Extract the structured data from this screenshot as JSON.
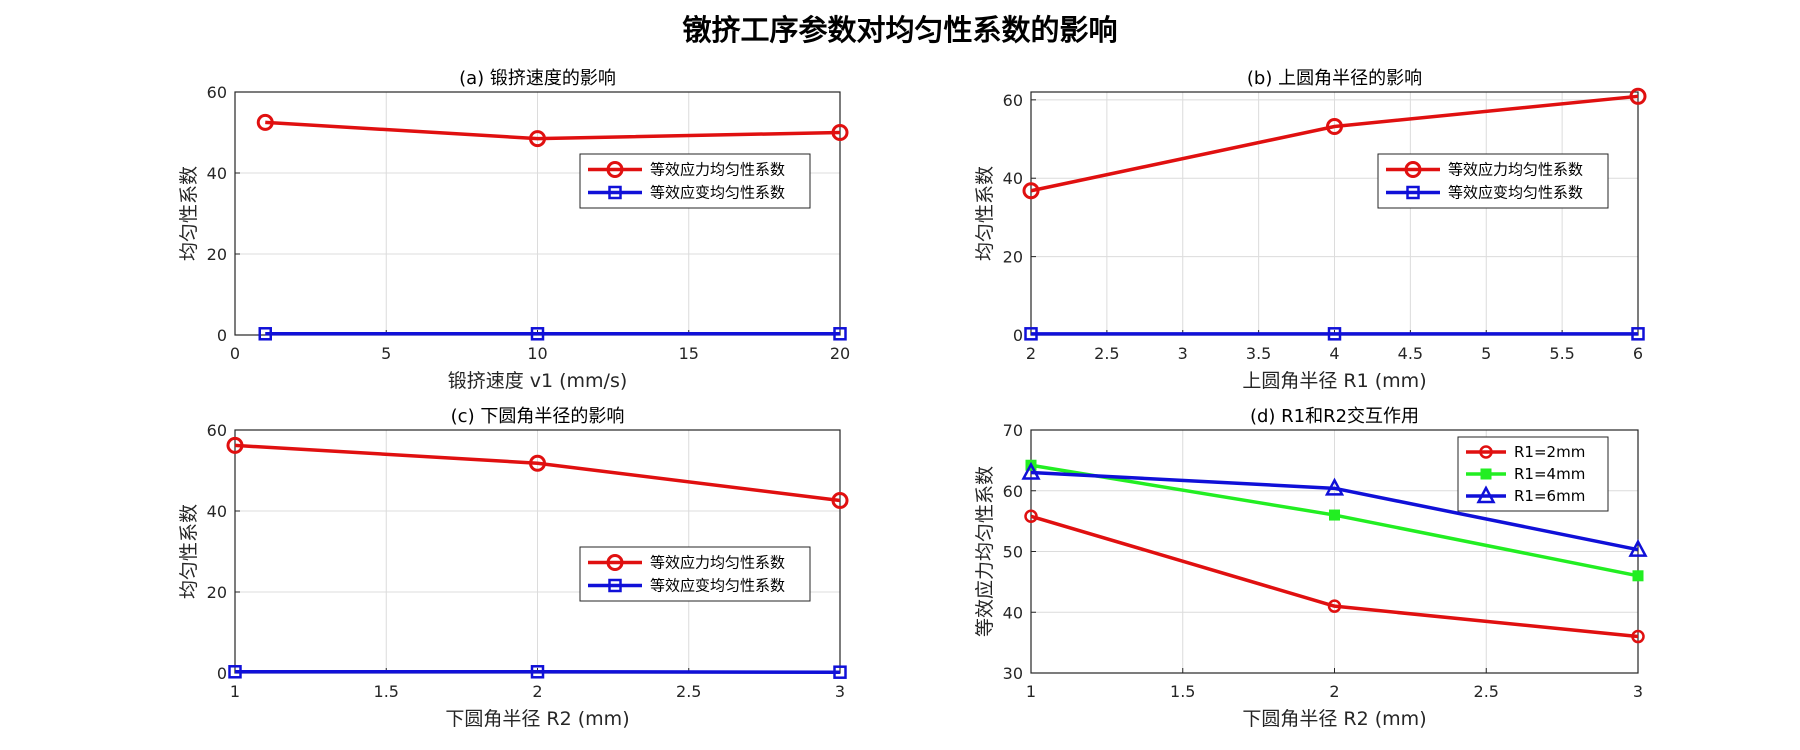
{
  "figure": {
    "title": "镦挤工序参数对均匀性系数的影响"
  },
  "colors": {
    "red": "#e01010",
    "blue": "#1010d8",
    "green": "#22ee22",
    "grid": "#dcdcdc",
    "axis": "#262626"
  },
  "chart_data": [
    {
      "id": "a",
      "type": "line",
      "title": "(a) 锻挤速度的影响",
      "xlabel": "锻挤速度 v1 (mm/s)",
      "ylabel": "均匀性系数",
      "xlim": [
        0,
        20
      ],
      "ylim": [
        0,
        60
      ],
      "xticks": [
        0,
        5,
        10,
        15,
        20
      ],
      "xtick_labels": [
        "0",
        "5",
        "10",
        "15",
        "20"
      ],
      "yticks": [
        0,
        20,
        40,
        60
      ],
      "ytick_labels": [
        "0",
        "20",
        "40",
        "60"
      ],
      "grid": true,
      "legend_position": "upper-right",
      "series": [
        {
          "name": "等效应力均匀性系数",
          "color": "red",
          "marker": "circle",
          "x": [
            1,
            10,
            20
          ],
          "y": [
            52.5,
            48.5,
            50
          ]
        },
        {
          "name": "等效应变均匀性系数",
          "color": "blue",
          "marker": "square",
          "x": [
            1,
            10,
            20
          ],
          "y": [
            0.3,
            0.3,
            0.3
          ]
        }
      ]
    },
    {
      "id": "b",
      "type": "line",
      "title": "(b) 上圆角半径的影响",
      "xlabel": "上圆角半径 R1 (mm)",
      "ylabel": "均匀性系数",
      "xlim": [
        2,
        6
      ],
      "ylim": [
        0,
        62
      ],
      "xticks": [
        2,
        2.5,
        3,
        3.5,
        4,
        4.5,
        5,
        5.5,
        6
      ],
      "xtick_labels": [
        "2",
        "2.5",
        "3",
        "3.5",
        "4",
        "4.5",
        "5",
        "5.5",
        "6"
      ],
      "yticks": [
        0,
        20,
        40,
        60
      ],
      "ytick_labels": [
        "0",
        "20",
        "40",
        "60"
      ],
      "grid": true,
      "legend_position": "upper-right",
      "series": [
        {
          "name": "等效应力均匀性系数",
          "color": "red",
          "marker": "circle",
          "x": [
            2,
            4,
            6
          ],
          "y": [
            36.8,
            53.2,
            60.9
          ]
        },
        {
          "name": "等效应变均匀性系数",
          "color": "blue",
          "marker": "square",
          "x": [
            2,
            4,
            6
          ],
          "y": [
            0.3,
            0.3,
            0.3
          ]
        }
      ]
    },
    {
      "id": "c",
      "type": "line",
      "title": "(c) 下圆角半径的影响",
      "xlabel": "下圆角半径 R2 (mm)",
      "ylabel": "均匀性系数",
      "xlim": [
        1,
        3
      ],
      "ylim": [
        0,
        60
      ],
      "xticks": [
        1,
        1.5,
        2,
        2.5,
        3
      ],
      "xtick_labels": [
        "1",
        "1.5",
        "2",
        "2.5",
        "3"
      ],
      "yticks": [
        0,
        20,
        40,
        60
      ],
      "ytick_labels": [
        "0",
        "20",
        "40",
        "60"
      ],
      "grid": true,
      "legend_position": "lower-right",
      "series": [
        {
          "name": "等效应力均匀性系数",
          "color": "red",
          "marker": "circle",
          "x": [
            1,
            2,
            3
          ],
          "y": [
            56.2,
            51.8,
            42.6
          ]
        },
        {
          "name": "等效应变均匀性系数",
          "color": "blue",
          "marker": "square",
          "x": [
            1,
            2,
            3
          ],
          "y": [
            0.3,
            0.3,
            0.2
          ]
        }
      ]
    },
    {
      "id": "d",
      "type": "line",
      "title": "(d) R1和R2交互作用",
      "xlabel": "下圆角半径 R2 (mm)",
      "ylabel": "等效应力均匀性系数",
      "xlim": [
        1,
        3
      ],
      "ylim": [
        30,
        70
      ],
      "xticks": [
        1,
        1.5,
        2,
        2.5,
        3
      ],
      "xtick_labels": [
        "1",
        "1.5",
        "2",
        "2.5",
        "3"
      ],
      "yticks": [
        30,
        40,
        50,
        60,
        70
      ],
      "ytick_labels": [
        "30",
        "40",
        "50",
        "60",
        "70"
      ],
      "grid": true,
      "legend_position": "upper-right",
      "series": [
        {
          "name": "R1=2mm",
          "color": "red",
          "marker": "circle-small",
          "x": [
            1,
            2,
            3
          ],
          "y": [
            55.8,
            41,
            36
          ]
        },
        {
          "name": "R1=4mm",
          "color": "green",
          "marker": "square-filled",
          "x": [
            1,
            2,
            3
          ],
          "y": [
            64.2,
            56,
            46
          ]
        },
        {
          "name": "R1=6mm",
          "color": "blue",
          "marker": "triangle",
          "x": [
            1,
            2,
            3
          ],
          "y": [
            63,
            60.4,
            50.3
          ]
        }
      ]
    }
  ]
}
